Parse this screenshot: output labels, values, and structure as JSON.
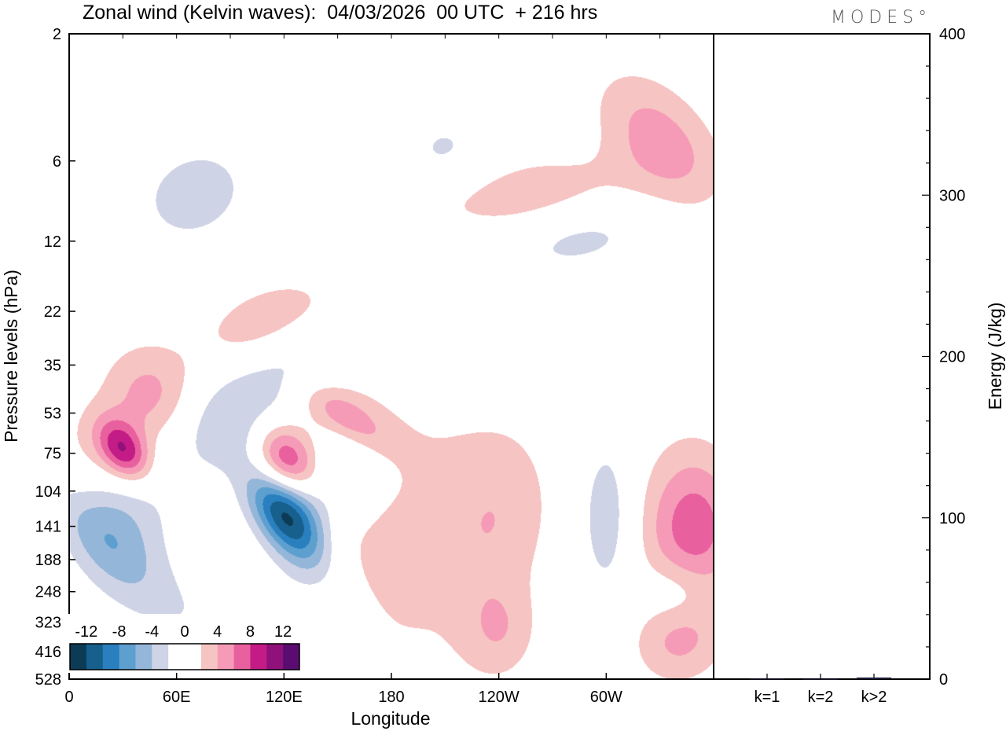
{
  "chart_data": [
    {
      "type": "heatmap",
      "title": "Zonal wind (Kelvin waves):  04/03/2026  00 UTC  + 216 hrs",
      "xlabel": "Longitude",
      "ylabel": "Pressure levels (hPa)",
      "x_ticks": [
        "0",
        "60E",
        "120E",
        "180",
        "120W",
        "60W"
      ],
      "y_ticks": [
        "2",
        "6",
        "12",
        "22",
        "35",
        "53",
        "75",
        "104",
        "141",
        "188",
        "248",
        "323",
        "416",
        "528"
      ],
      "colorbar": {
        "labels": [
          "-12",
          "-8",
          "-4",
          "0",
          "4",
          "8",
          "12"
        ],
        "colors": [
          "#0d3b55",
          "#175f8c",
          "#2a7fbf",
          "#5d9fcf",
          "#94b6d9",
          "#cfd3e6",
          "#ffffff",
          "#ffffff",
          "#f6c4c2",
          "#f69bb7",
          "#e9609f",
          "#c41c86",
          "#90117a",
          "#5b0c70"
        ]
      },
      "blobs": [
        {
          "lon": 175,
          "p": 140,
          "a": 60,
          "b": 1.6,
          "ang": 0,
          "v": 3
        },
        {
          "lon": 240,
          "p": 130,
          "a": 30,
          "b": 0.8,
          "ang": 10,
          "v": 3
        },
        {
          "lon": 350,
          "p": 140,
          "a": 25,
          "b": 0.6,
          "ang": 0,
          "v": 4.5
        },
        {
          "lon": 345,
          "p": 160,
          "a": 30,
          "b": 0.9,
          "ang": 0,
          "v": 3
        },
        {
          "lon": 10,
          "p": 95,
          "a": 35,
          "b": 0.55,
          "ang": -40,
          "v": 4
        },
        {
          "lon": 30,
          "p": 73,
          "a": 12,
          "b": 0.3,
          "ang": -40,
          "v": 9
        },
        {
          "lon": 45,
          "p": 45,
          "a": 25,
          "b": 0.45,
          "ang": -40,
          "v": 4.5
        },
        {
          "lon": 120,
          "p": 82,
          "a": 18,
          "b": 0.35,
          "ang": -50,
          "v": 11
        },
        {
          "lon": 155,
          "p": 55,
          "a": 12,
          "b": 0.5,
          "ang": -60,
          "v": 5
        },
        {
          "lon": 115,
          "p": 25,
          "a": 40,
          "b": 0.35,
          "ang": -15,
          "v": 4.5
        },
        {
          "lon": 240,
          "p": 8,
          "a": 70,
          "b": 0.3,
          "ang": -8,
          "v": 3.5
        },
        {
          "lon": 330,
          "p": 5,
          "a": 25,
          "b": 0.7,
          "ang": -45,
          "v": 5
        },
        {
          "lon": 240,
          "p": 350,
          "a": 20,
          "b": 0.4,
          "ang": 0,
          "v": 3
        },
        {
          "lon": 340,
          "p": 380,
          "a": 25,
          "b": 0.35,
          "ang": -15,
          "v": 3.5
        },
        {
          "lon": 15,
          "p": 150,
          "a": 20,
          "b": 0.8,
          "ang": -45,
          "v": -6
        },
        {
          "lon": 30,
          "p": 110,
          "a": 25,
          "b": 0.5,
          "ang": -40,
          "v": -4
        },
        {
          "lon": 120,
          "p": 125,
          "a": 15,
          "b": 0.55,
          "ang": -35,
          "v": -13
        },
        {
          "lon": 145,
          "p": 90,
          "a": 35,
          "b": 0.45,
          "ang": -25,
          "v": -5
        },
        {
          "lon": 90,
          "p": 55,
          "a": 40,
          "b": 0.4,
          "ang": -30,
          "v": -4
        },
        {
          "lon": 130,
          "p": 30,
          "a": 35,
          "b": 0.35,
          "ang": -20,
          "v": -4
        },
        {
          "lon": 70,
          "p": 8,
          "a": 35,
          "b": 0.45,
          "ang": -20,
          "v": -3
        },
        {
          "lon": 110,
          "p": 300,
          "a": 50,
          "b": 0.45,
          "ang": 0,
          "v": -2.5
        },
        {
          "lon": 300,
          "p": 130,
          "a": 15,
          "b": 0.7,
          "ang": 0,
          "v": -3.5
        },
        {
          "lon": 340,
          "p": 250,
          "a": 20,
          "b": 0.3,
          "ang": 0,
          "v": -3
        },
        {
          "lon": 210,
          "p": 6,
          "a": 30,
          "b": 0.5,
          "ang": -30,
          "v": -2.5
        },
        {
          "lon": 285,
          "p": 12,
          "a": 40,
          "b": 0.25,
          "ang": -10,
          "v": -2.5
        }
      ]
    },
    {
      "type": "bar",
      "categories": [
        "k=1",
        "k=2",
        "k>2"
      ],
      "values": [
        0.3,
        0.2,
        1.0
      ],
      "ylabel": "Energy (J/kg)",
      "ylim": [
        0,
        400
      ],
      "y_ticks": [
        0,
        100,
        200,
        300,
        400
      ]
    }
  ],
  "logo_text": "MODES°"
}
